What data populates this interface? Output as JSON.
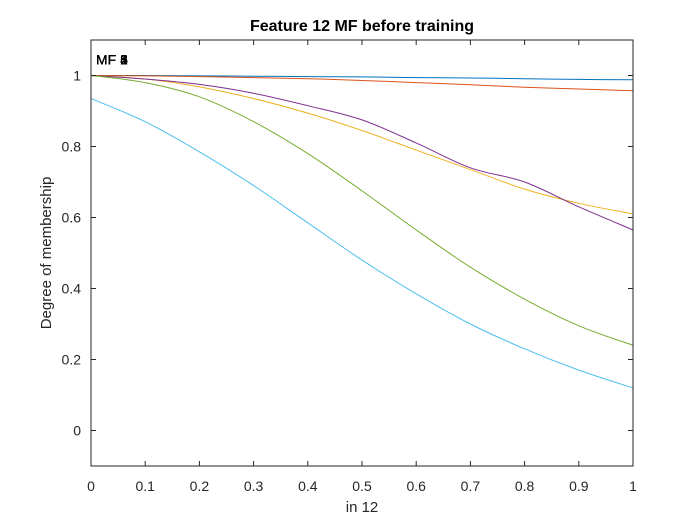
{
  "chart_data": {
    "type": "line",
    "title": "Feature  12 MF before training",
    "xlabel": "in 12",
    "ylabel": "Degree of membership",
    "xlim": [
      0,
      1
    ],
    "ylim": [
      -0.1,
      1.1
    ],
    "grid": false,
    "x_ticks": [
      0,
      0.1,
      0.2,
      0.3,
      0.4,
      0.5,
      0.6,
      0.7,
      0.8,
      0.9,
      1
    ],
    "x_tick_labels": [
      "0",
      "0.1",
      "0.2",
      "0.3",
      "0.4",
      "0.5",
      "0.6",
      "0.7",
      "0.8",
      "0.9",
      "1"
    ],
    "y_ticks": [
      0,
      0.2,
      0.4,
      0.6,
      0.8,
      1
    ],
    "y_tick_labels": [
      "0",
      "0.2",
      "0.4",
      "0.6",
      "0.8",
      "1"
    ],
    "series": [
      {
        "name": "MF 1",
        "color": "#0072BD",
        "x": [
          0,
          0.1,
          0.2,
          0.3,
          0.4,
          0.5,
          0.6,
          0.7,
          0.8,
          0.9,
          1
        ],
        "values": [
          1.0,
          1.0,
          0.999,
          0.998,
          0.997,
          0.996,
          0.994,
          0.993,
          0.991,
          0.989,
          0.988
        ]
      },
      {
        "name": "MF 2",
        "color": "#D95319",
        "x": [
          0,
          0.1,
          0.2,
          0.3,
          0.4,
          0.5,
          0.6,
          0.7,
          0.8,
          0.9,
          1
        ],
        "values": [
          1.0,
          0.999,
          0.997,
          0.994,
          0.991,
          0.986,
          0.98,
          0.974,
          0.967,
          0.962,
          0.957
        ]
      },
      {
        "name": "MF 3",
        "color": "#EDB120",
        "x": [
          0,
          0.1,
          0.2,
          0.3,
          0.4,
          0.5,
          0.6,
          0.7,
          0.8,
          0.9,
          1
        ],
        "values": [
          1.0,
          0.99,
          0.968,
          0.935,
          0.894,
          0.845,
          0.79,
          0.735,
          0.68,
          0.64,
          0.61
        ]
      },
      {
        "name": "MF 4",
        "color": "#7E2F8E",
        "x": [
          0,
          0.1,
          0.2,
          0.3,
          0.4,
          0.5,
          0.6,
          0.7,
          0.8,
          0.9,
          1
        ],
        "values": [
          1.0,
          0.99,
          0.975,
          0.95,
          0.915,
          0.875,
          0.81,
          0.74,
          0.7,
          0.63,
          0.565
        ]
      },
      {
        "name": "MF 5",
        "color": "#77AC30",
        "x": [
          0,
          0.1,
          0.2,
          0.3,
          0.4,
          0.5,
          0.6,
          0.7,
          0.8,
          0.9,
          1
        ],
        "values": [
          1.0,
          0.98,
          0.94,
          0.87,
          0.78,
          0.675,
          0.565,
          0.46,
          0.37,
          0.295,
          0.24
        ]
      },
      {
        "name": "MF 6",
        "color": "#4DBEEE",
        "x": [
          0,
          0.1,
          0.2,
          0.3,
          0.4,
          0.5,
          0.6,
          0.7,
          0.8,
          0.9,
          1
        ],
        "values": [
          0.935,
          0.87,
          0.785,
          0.69,
          0.585,
          0.48,
          0.385,
          0.3,
          0.23,
          0.17,
          0.12
        ]
      }
    ],
    "mf_labels": [
      "MF 1",
      "MF 2",
      "MF 3",
      "MF 4",
      "MF 5",
      "MF 6"
    ]
  }
}
